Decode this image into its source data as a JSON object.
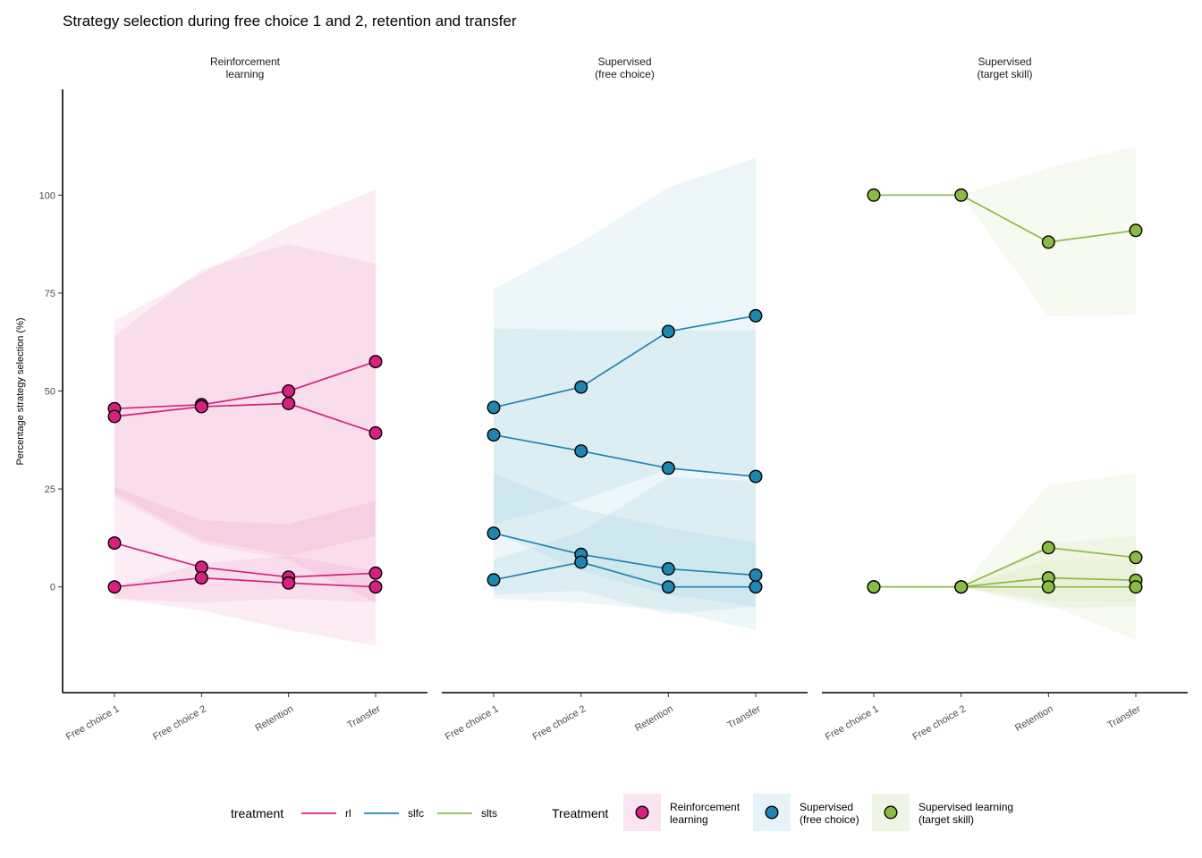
{
  "chart_data": {
    "type": "line",
    "title": "Strategy selection during free choice 1 and 2, retention and transfer",
    "ylabel": "Percentage strategy selection (%)",
    "xlabel": "",
    "ylim": [
      -27,
      127
    ],
    "yticks": [
      0,
      25,
      50,
      75,
      100
    ],
    "categories": [
      "Free choice 1",
      "Free choice 2",
      "Retention",
      "Transfer"
    ],
    "grid": false,
    "legend_position": "bottom",
    "legends": [
      {
        "title": "treatment",
        "entries": [
          {
            "key": "rl",
            "label": "rl",
            "color": "#d6217e"
          },
          {
            "key": "slfc",
            "label": "slfc",
            "color": "#1f86b0"
          },
          {
            "key": "slts",
            "label": "slts",
            "color": "#8abc45"
          }
        ]
      },
      {
        "title": "Treatment",
        "entries": [
          {
            "key": "rl",
            "label": [
              "Reinforcement",
              "learning"
            ],
            "color": "#d6217e",
            "fill": "#f9e4ef"
          },
          {
            "key": "slfc",
            "label": [
              "Supervised",
              "(free choice)"
            ],
            "color": "#1f86b0",
            "fill": "#e6f3f8"
          },
          {
            "key": "slts",
            "label": [
              "Supervised learning",
              "(target skill)"
            ],
            "color": "#8abc45",
            "fill": "#eef5e4"
          }
        ]
      }
    ],
    "panels": [
      {
        "key": "rl",
        "strip": [
          "Reinforcement",
          "learning"
        ],
        "color": "#d6217e",
        "ribbon_color": "#e97cb3",
        "series": [
          {
            "values": [
              45.5,
              46.5,
              50,
              57.5
            ],
            "ribbon": {
              "lower": [
                24,
                12,
                8,
                13
              ],
              "upper": [
                68,
                80,
                92,
                101.5
              ]
            }
          },
          {
            "values": [
              43.5,
              46,
              46.8,
              39.3
            ],
            "ribbon": {
              "lower": [
                23,
                11,
                7,
                -4
              ],
              "upper": [
                64,
                81,
                87.5,
                82.5
              ]
            }
          },
          {
            "values": [
              11.2,
              5.0,
              2.5,
              3.5
            ],
            "ribbon": {
              "lower": [
                -3,
                -4,
                -3,
                -4
              ],
              "upper": [
                25.5,
                17,
                16,
                22
              ]
            }
          },
          {
            "values": [
              0,
              2.3,
              1.0,
              0
            ],
            "ribbon": {
              "lower": [
                -3,
                -6,
                -11,
                -15
              ],
              "upper": [
                0,
                6,
                8,
                4
              ]
            }
          }
        ]
      },
      {
        "key": "slfc",
        "strip": [
          "Supervised",
          "(free choice)"
        ],
        "color": "#1f86b0",
        "ribbon_color": "#7fbfd6",
        "series": [
          {
            "values": [
              45.8,
              51,
              65.2,
              69.2
            ],
            "ribbon": {
              "lower": [
                16,
                22,
                30,
                29
              ],
              "upper": [
                76,
                88,
                102,
                109.5
              ]
            }
          },
          {
            "values": [
              38.8,
              34.7,
              30.3,
              28.2
            ],
            "ribbon": {
              "lower": [
                14,
                4,
                -2,
                -5
              ],
              "upper": [
                66,
                65.5,
                65.5,
                65.5
              ]
            }
          },
          {
            "values": [
              13.7,
              8.3,
              4.6,
              3.0
            ],
            "ribbon": {
              "lower": [
                -2,
                -1,
                -7,
                -5
              ],
              "upper": [
                29,
                20,
                15,
                11.5
              ]
            }
          },
          {
            "values": [
              1.8,
              6.3,
              0,
              0
            ],
            "ribbon": {
              "lower": [
                -3,
                -4,
                -6,
                -11
              ],
              "upper": [
                7,
                14,
                28,
                27
              ]
            }
          }
        ]
      },
      {
        "key": "slts",
        "strip": [
          "Supervised",
          "(target skill)"
        ],
        "color": "#8abc45",
        "ribbon_color": "#c3df9f",
        "series": [
          {
            "values": [
              100,
              100,
              88,
              91
            ],
            "ribbon": {
              "lower": [
                100,
                100,
                69,
                69.5
              ],
              "upper": [
                100,
                100,
                107,
                112.5
              ]
            }
          },
          {
            "values": [
              0,
              0,
              10,
              7.5
            ],
            "ribbon": {
              "lower": [
                0,
                0,
                -5.5,
                -5
              ],
              "upper": [
                0,
                0,
                26,
                29
              ]
            }
          },
          {
            "values": [
              0,
              0,
              2.3,
              1.7
            ],
            "ribbon": {
              "lower": [
                0,
                0,
                -4.5,
                -13.5
              ],
              "upper": [
                0,
                0,
                11,
                13
              ]
            }
          },
          {
            "values": [
              0,
              0,
              0,
              0
            ],
            "ribbon": {
              "lower": [
                0,
                0,
                -3.5,
                -4
              ],
              "upper": [
                0,
                0,
                7,
                7
              ]
            }
          }
        ]
      }
    ]
  }
}
